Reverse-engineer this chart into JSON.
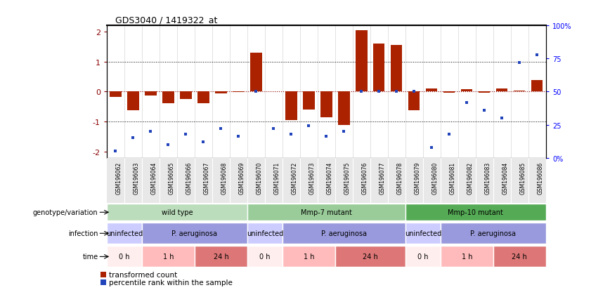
{
  "title": "GDS3040 / 1419322_at",
  "samples": [
    "GSM196062",
    "GSM196063",
    "GSM196064",
    "GSM196065",
    "GSM196066",
    "GSM196067",
    "GSM196068",
    "GSM196069",
    "GSM196070",
    "GSM196071",
    "GSM196072",
    "GSM196073",
    "GSM196074",
    "GSM196075",
    "GSM196076",
    "GSM196077",
    "GSM196078",
    "GSM196079",
    "GSM196080",
    "GSM196081",
    "GSM196082",
    "GSM196083",
    "GSM196084",
    "GSM196085",
    "GSM196086"
  ],
  "red_values": [
    -0.18,
    -0.62,
    -0.12,
    -0.38,
    -0.25,
    -0.38,
    -0.05,
    -0.02,
    1.3,
    0.02,
    -0.95,
    -0.6,
    -0.85,
    -1.1,
    2.05,
    1.6,
    1.55,
    -0.62,
    0.1,
    -0.04,
    0.08,
    -0.04,
    0.1,
    0.04,
    0.38
  ],
  "blue_values": [
    5,
    15,
    20,
    10,
    18,
    12,
    22,
    16,
    50,
    22,
    18,
    24,
    16,
    20,
    50,
    50,
    50,
    50,
    8,
    18,
    42,
    36,
    30,
    72,
    78
  ],
  "genotype_groups": [
    {
      "label": "wild type",
      "start": 0,
      "end": 8,
      "color": "#bbddbb"
    },
    {
      "label": "Mmp-7 mutant",
      "start": 8,
      "end": 17,
      "color": "#99cc99"
    },
    {
      "label": "Mmp-10 mutant",
      "start": 17,
      "end": 25,
      "color": "#55aa55"
    }
  ],
  "infection_groups": [
    {
      "label": "uninfected",
      "start": 0,
      "end": 2,
      "color": "#ccccff"
    },
    {
      "label": "P. aeruginosa",
      "start": 2,
      "end": 8,
      "color": "#9999dd"
    },
    {
      "label": "uninfected",
      "start": 8,
      "end": 10,
      "color": "#ccccff"
    },
    {
      "label": "P. aeruginosa",
      "start": 10,
      "end": 17,
      "color": "#9999dd"
    },
    {
      "label": "uninfected",
      "start": 17,
      "end": 19,
      "color": "#ccccff"
    },
    {
      "label": "P. aeruginosa",
      "start": 19,
      "end": 25,
      "color": "#9999dd"
    }
  ],
  "time_groups": [
    {
      "label": "0 h",
      "start": 0,
      "end": 2,
      "color": "#ffeeee"
    },
    {
      "label": "1 h",
      "start": 2,
      "end": 5,
      "color": "#ffbbbb"
    },
    {
      "label": "24 h",
      "start": 5,
      "end": 8,
      "color": "#dd7777"
    },
    {
      "label": "0 h",
      "start": 8,
      "end": 10,
      "color": "#ffeeee"
    },
    {
      "label": "1 h",
      "start": 10,
      "end": 13,
      "color": "#ffbbbb"
    },
    {
      "label": "24 h",
      "start": 13,
      "end": 17,
      "color": "#dd7777"
    },
    {
      "label": "0 h",
      "start": 17,
      "end": 19,
      "color": "#ffeeee"
    },
    {
      "label": "1 h",
      "start": 19,
      "end": 22,
      "color": "#ffbbbb"
    },
    {
      "label": "24 h",
      "start": 22,
      "end": 25,
      "color": "#dd7777"
    }
  ],
  "ylim": [
    -2.2,
    2.2
  ],
  "yticks": [
    -2,
    -1,
    0,
    1,
    2
  ],
  "right_yticks": [
    0,
    25,
    50,
    75,
    100
  ],
  "bar_color": "#aa2200",
  "dot_color": "#2244bb",
  "row_labels": [
    "genotype/variation",
    "infection",
    "time"
  ],
  "legend": [
    "transformed count",
    "percentile rank within the sample"
  ]
}
